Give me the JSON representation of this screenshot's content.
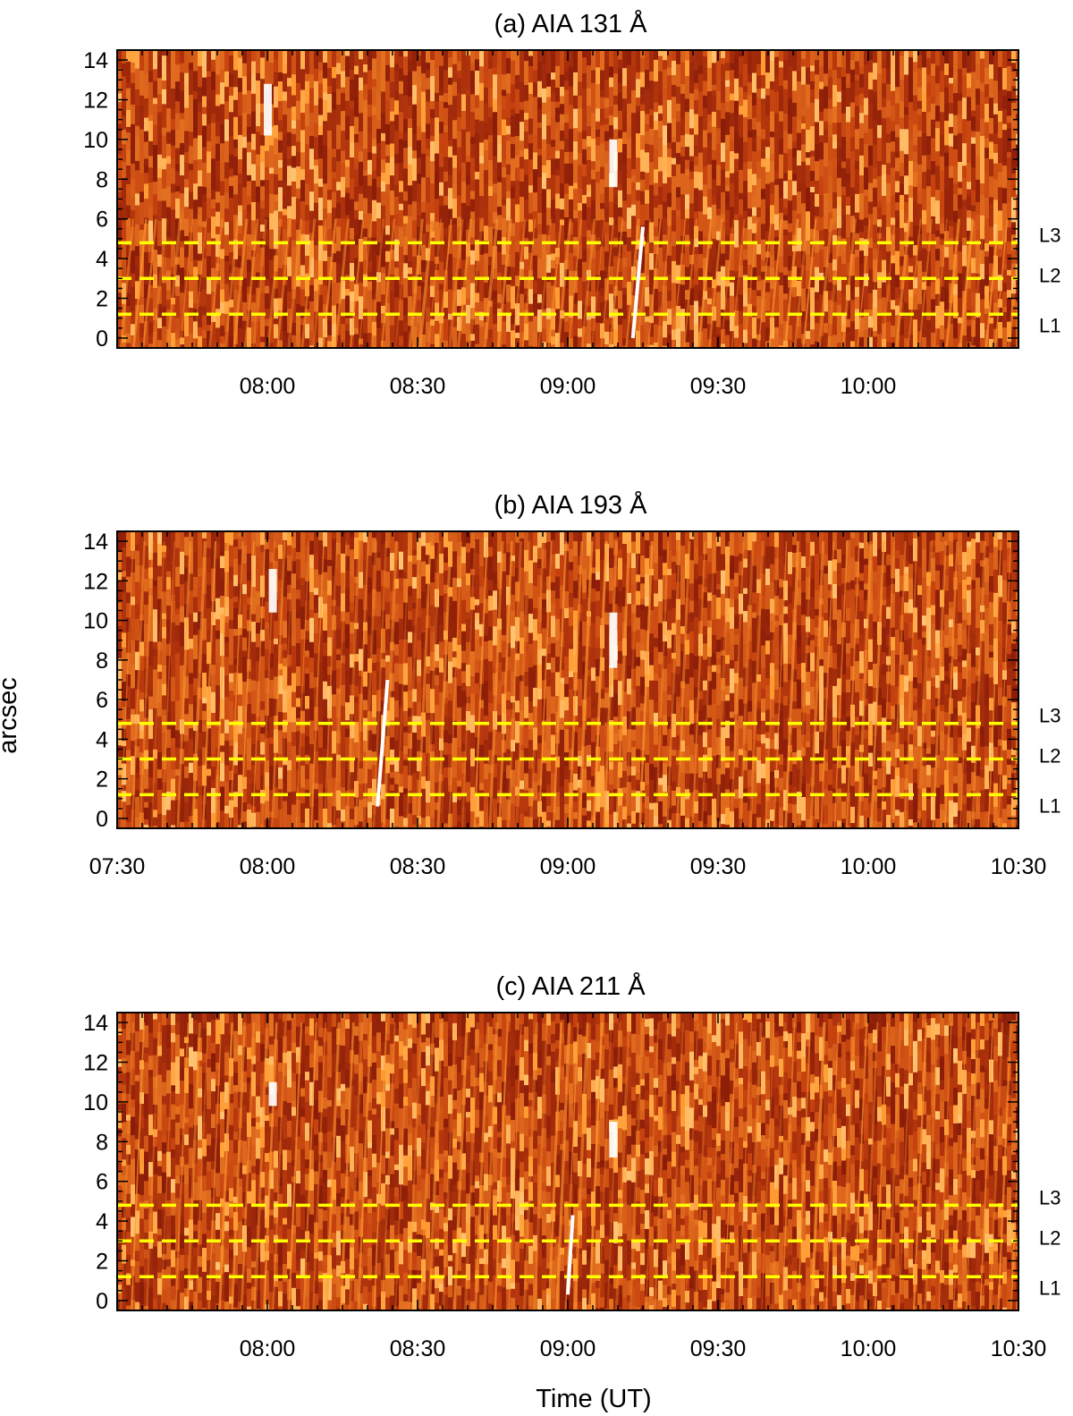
{
  "figure": {
    "ylabel": "arcsec",
    "xlabel": "Time (UT)"
  },
  "colors": {
    "background_dark": "#8a1c08",
    "background_mid": "#c4400e",
    "streak_bright": "#ff9a30",
    "guide_lines": "#ffff00",
    "slope_line": "#ffffff",
    "axes": "#000000"
  },
  "chart_data": [
    {
      "type": "heatmap",
      "title": "(a) AIA 131 Å",
      "x_range": [
        "07:30",
        "10:30"
      ],
      "y_range": [
        -0.5,
        14.5
      ],
      "y_ticks": [
        "0",
        "2",
        "4",
        "6",
        "8",
        "10",
        "12",
        "14"
      ],
      "x_ticks": [
        "08:00",
        "08:30",
        "09:00",
        "09:30",
        "10:00"
      ],
      "guide_levels": [
        {
          "label": "L1",
          "y": 1.2
        },
        {
          "label": "L2",
          "y": 3.0
        },
        {
          "label": "L3",
          "y": 4.8
        }
      ],
      "slope_line": {
        "x1": "09:13",
        "y1": 0.0,
        "x2": "09:15",
        "y2": 5.6
      },
      "bright_features": [
        {
          "x": "08:00",
          "y1": 10.2,
          "y2": 12.8
        },
        {
          "x": "09:09",
          "y1": 7.6,
          "y2": 10.0
        }
      ]
    },
    {
      "type": "heatmap",
      "title": "(b) AIA 193 Å",
      "x_range": [
        "07:30",
        "10:30"
      ],
      "y_range": [
        -0.5,
        14.5
      ],
      "y_ticks": [
        "0",
        "2",
        "4",
        "6",
        "8",
        "10",
        "12",
        "14"
      ],
      "x_ticks": [
        "07:30",
        "08:00",
        "08:30",
        "09:00",
        "09:30",
        "10:00",
        "10:30"
      ],
      "guide_levels": [
        {
          "label": "L1",
          "y": 1.2
        },
        {
          "label": "L2",
          "y": 3.0
        },
        {
          "label": "L3",
          "y": 4.8
        }
      ],
      "slope_line": {
        "x1": "08:22",
        "y1": 0.6,
        "x2": "08:24",
        "y2": 7.0
      },
      "bright_features": [
        {
          "x": "08:01",
          "y1": 10.4,
          "y2": 12.6
        },
        {
          "x": "09:09",
          "y1": 7.6,
          "y2": 10.4
        }
      ]
    },
    {
      "type": "heatmap",
      "title": "(c) AIA 211 Å",
      "x_range": [
        "07:30",
        "10:30"
      ],
      "y_range": [
        -0.5,
        14.5
      ],
      "y_ticks": [
        "0",
        "2",
        "4",
        "6",
        "8",
        "10",
        "12",
        "14"
      ],
      "x_ticks": [
        "08:00",
        "08:30",
        "09:00",
        "09:30",
        "10:00",
        "10:30"
      ],
      "guide_levels": [
        {
          "label": "L1",
          "y": 1.2
        },
        {
          "label": "L2",
          "y": 3.0
        },
        {
          "label": "L3",
          "y": 4.8
        }
      ],
      "slope_line": {
        "x1": "09:00",
        "y1": 0.3,
        "x2": "09:01",
        "y2": 4.3
      },
      "bright_features": [
        {
          "x": "08:01",
          "y1": 9.8,
          "y2": 11.0
        },
        {
          "x": "09:09",
          "y1": 7.2,
          "y2": 9.0
        }
      ]
    }
  ]
}
